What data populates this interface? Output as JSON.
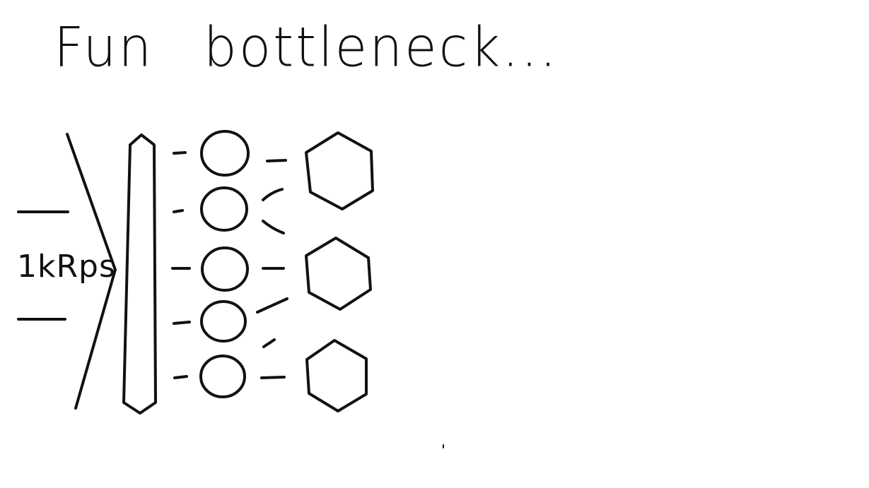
{
  "title": "Fun bottleneck...",
  "incoming_rate_label": "1kRps",
  "colors": {
    "ink": "#111111",
    "paper": "#ffffff"
  },
  "diagram": {
    "components": [
      "load-balancer",
      "service-instances",
      "backend-nodes"
    ],
    "service_instance_count": 5,
    "backend_node_count": 3
  }
}
